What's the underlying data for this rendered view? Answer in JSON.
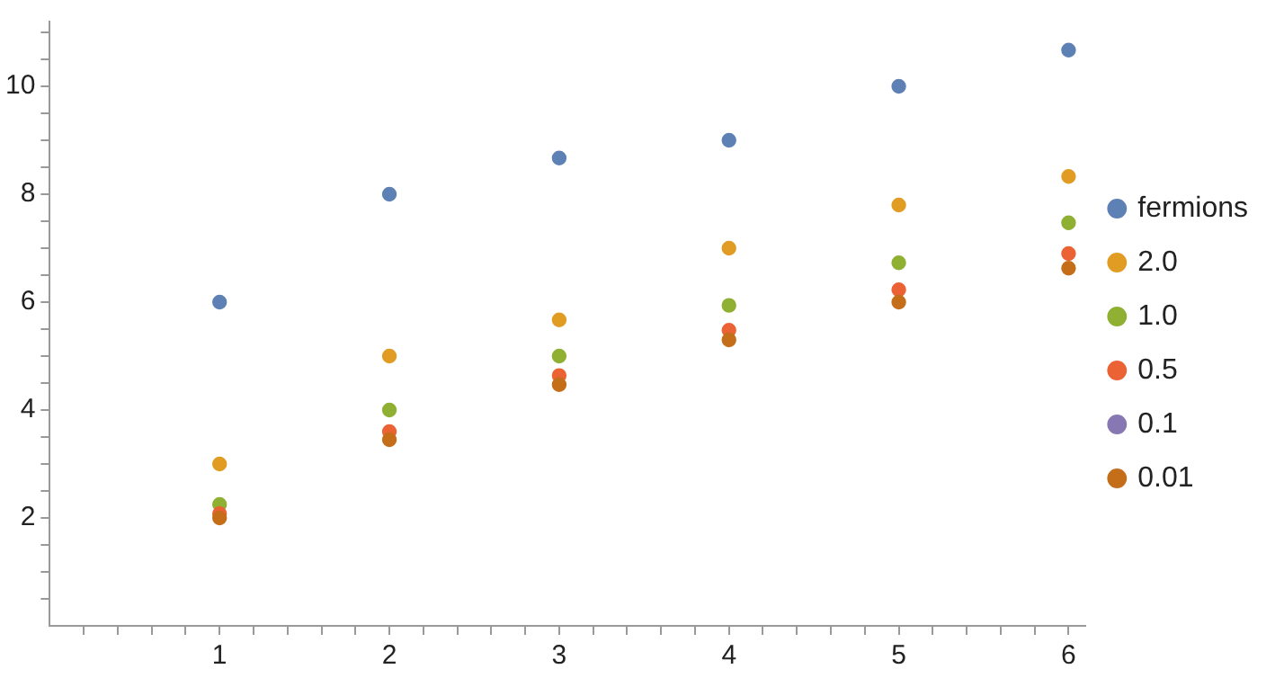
{
  "chart_data": {
    "type": "scatter",
    "x": [
      1,
      2,
      3,
      4,
      5,
      6
    ],
    "series": [
      {
        "name": "fermions",
        "color": "#5e81b5",
        "values": [
          6,
          8,
          8.67,
          9,
          10,
          10.67
        ]
      },
      {
        "name": "2.0",
        "color": "#e19c24",
        "values": [
          3,
          5,
          5.67,
          7,
          7.8,
          8.33
        ]
      },
      {
        "name": "1.0",
        "color": "#8fb032",
        "values": [
          2.25,
          4,
          5,
          5.94,
          6.73,
          7.47
        ]
      },
      {
        "name": "0.5",
        "color": "#eb6235",
        "values": [
          2.08,
          3.6,
          4.64,
          5.48,
          6.23,
          6.9
        ]
      },
      {
        "name": "0.1",
        "color": "#8778b3",
        "values": [
          null,
          null,
          null,
          null,
          null,
          null
        ]
      },
      {
        "name": "0.01",
        "color": "#c56e1a",
        "values": [
          2,
          3.45,
          4.47,
          5.3,
          6,
          6.63
        ]
      }
    ],
    "xlim": [
      0,
      6.1
    ],
    "ylim": [
      0,
      11.2
    ],
    "xticks": [
      {
        "value": 0.2,
        "label": null
      },
      {
        "value": 0.4,
        "label": null
      },
      {
        "value": 0.6,
        "label": null
      },
      {
        "value": 0.8,
        "label": null
      },
      1,
      {
        "value": 1.2,
        "label": null
      },
      {
        "value": 1.4,
        "label": null
      },
      {
        "value": 1.6,
        "label": null
      },
      {
        "value": 1.8,
        "label": null
      },
      2,
      {
        "value": 2.2,
        "label": null
      },
      {
        "value": 2.4,
        "label": null
      },
      {
        "value": 2.6,
        "label": null
      },
      {
        "value": 2.8,
        "label": null
      },
      3,
      {
        "value": 3.2,
        "label": null
      },
      {
        "value": 3.4,
        "label": null
      },
      {
        "value": 3.6,
        "label": null
      },
      {
        "value": 3.8,
        "label": null
      },
      4,
      {
        "value": 4.2,
        "label": null
      },
      {
        "value": 4.4,
        "label": null
      },
      {
        "value": 4.6,
        "label": null
      },
      {
        "value": 4.8,
        "label": null
      },
      5,
      {
        "value": 5.2,
        "label": null
      },
      {
        "value": 5.4,
        "label": null
      },
      {
        "value": 5.6,
        "label": null
      },
      {
        "value": 5.8,
        "label": null
      },
      6
    ],
    "yticks": [
      {
        "value": 0.5,
        "label": null
      },
      {
        "value": 1,
        "label": null
      },
      {
        "value": 1.5,
        "label": null
      },
      2,
      {
        "value": 2.5,
        "label": null
      },
      {
        "value": 3,
        "label": null
      },
      {
        "value": 3.5,
        "label": null
      },
      4,
      {
        "value": 4.5,
        "label": null
      },
      {
        "value": 5,
        "label": null
      },
      {
        "value": 5.5,
        "label": null
      },
      6,
      {
        "value": 6.5,
        "label": null
      },
      {
        "value": 7,
        "label": null
      },
      {
        "value": 7.5,
        "label": null
      },
      8,
      {
        "value": 8.5,
        "label": null
      },
      {
        "value": 9,
        "label": null
      },
      {
        "value": 9.5,
        "label": null
      },
      10,
      {
        "value": 10.5,
        "label": null
      },
      {
        "value": 11,
        "label": null
      }
    ],
    "grid": false,
    "legend": "right",
    "marker": "circle"
  }
}
